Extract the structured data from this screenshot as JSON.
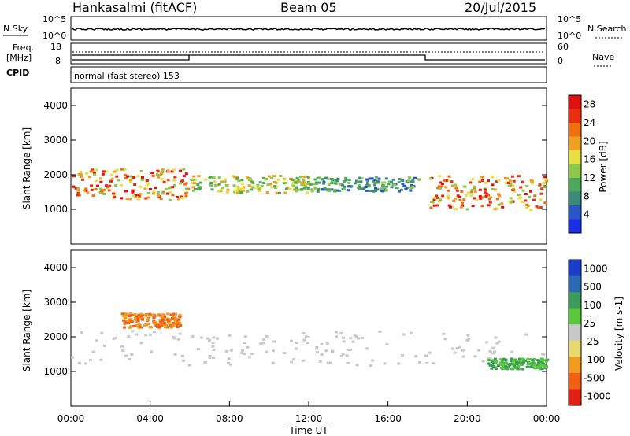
{
  "header": {
    "title": "Hankasalmi (fitACF)",
    "beam": "Beam 05",
    "date": "20/Jul/2015"
  },
  "strip_labels": {
    "nsky": "N.Sky",
    "nsearch": "N.Search",
    "freq": "Freq.",
    "freq_unit": "[MHz]",
    "nave": "Nave",
    "cpid": "CPID",
    "cpid_value": "normal (fast stereo) 153",
    "noise_left_top": "10^5",
    "noise_left_bottom": "10^0",
    "noise_right_top": "10^5",
    "noise_right_bottom": "10^0",
    "freq_left_ticks": [
      "18",
      "8"
    ],
    "freq_right_ticks": [
      "60",
      "0"
    ]
  },
  "chart_data": [
    {
      "type": "heatmap",
      "title": "",
      "ylabel": "Slant Range [km]",
      "xlabel": "",
      "ylim": [
        0,
        4500
      ],
      "xlim_hours": [
        0,
        24
      ],
      "yticks": [
        1000,
        2000,
        3000,
        4000
      ],
      "colorbar": {
        "label": "Power [dB]",
        "ticks": [
          4,
          8,
          12,
          16,
          20,
          24,
          28
        ],
        "range": [
          0,
          30
        ],
        "colors": [
          "#1a2ee6",
          "#2a56c8",
          "#3c8a78",
          "#4ca85a",
          "#8cc84a",
          "#e6e040",
          "#f0a020",
          "#f07010",
          "#e83010",
          "#e01010"
        ]
      },
      "features": [
        {
          "t0": 0.0,
          "t1": 6.0,
          "r0": 1300,
          "r1": 2200,
          "level": "high"
        },
        {
          "t0": 6.0,
          "t1": 12.0,
          "r0": 1500,
          "r1": 2000,
          "level": "medium"
        },
        {
          "t0": 12.0,
          "t1": 17.5,
          "r0": 1550,
          "r1": 1950,
          "level": "low"
        },
        {
          "t0": 18.0,
          "t1": 24.0,
          "r0": 1000,
          "r1": 2000,
          "level": "high"
        }
      ]
    },
    {
      "type": "heatmap",
      "title": "",
      "ylabel": "Slant Range [km]",
      "xlabel": "Time UT",
      "ylim": [
        0,
        4500
      ],
      "xlim_hours": [
        0,
        24
      ],
      "yticks": [
        1000,
        2000,
        3000,
        4000
      ],
      "xticks": [
        "00:00",
        "04:00",
        "08:00",
        "12:00",
        "16:00",
        "20:00",
        "00:00"
      ],
      "colorbar": {
        "label": "Velocity [m s-1]",
        "ticks": [
          1000,
          500,
          100,
          25,
          -25,
          -100,
          -500,
          -1000
        ],
        "colors": [
          "#1a3cc8",
          "#2a6ab4",
          "#3c9a5a",
          "#5ac83c",
          "#c8c8c8",
          "#e8d870",
          "#f09a20",
          "#f06010",
          "#e02010"
        ]
      },
      "features": [
        {
          "t0": 0.0,
          "t1": 24.0,
          "r0": 1200,
          "r1": 2200,
          "level": "ground-scatter"
        },
        {
          "t0": 2.5,
          "t1": 5.5,
          "r0": 2300,
          "r1": 2700,
          "level": "away"
        },
        {
          "t0": 21.0,
          "t1": 24.0,
          "r0": 1100,
          "r1": 1400,
          "level": "toward"
        }
      ]
    }
  ]
}
